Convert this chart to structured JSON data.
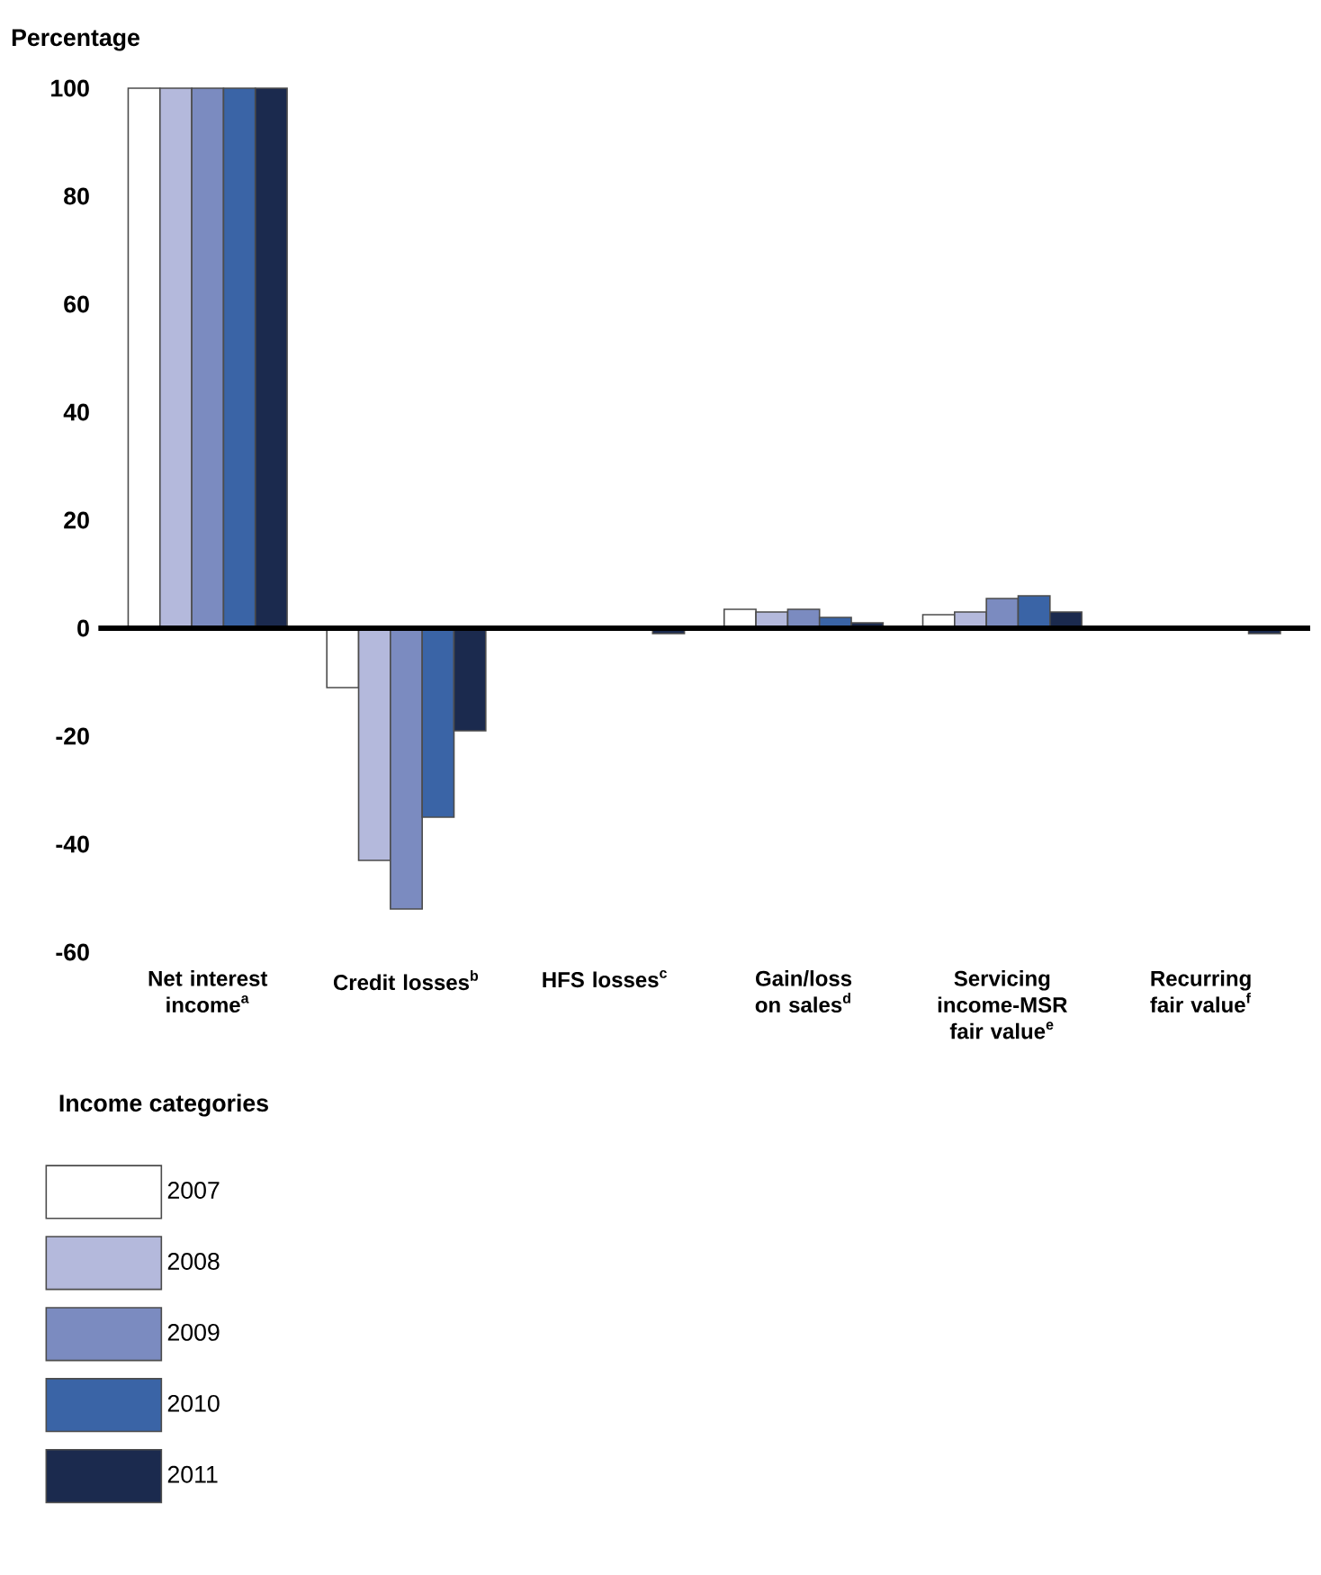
{
  "chart_data": {
    "type": "bar",
    "ylabel": "Percentage",
    "legend_title": "Income categories",
    "categories": [
      "Net interest income$^{a}$",
      "Credit losses$^{b}$",
      "HFS losses$^{c}$",
      "Gain/loss on sales$^{d}$",
      "Servicing income-MSR fair value$^{e}$",
      "Recurring fair value$^{f}$"
    ],
    "series": [
      {
        "name": "2007",
        "color": "#ffffff",
        "values": [
          100,
          -11,
          null,
          3.5,
          2.5,
          null
        ]
      },
      {
        "name": "2008",
        "color": "#b4b9dc",
        "values": [
          100,
          -43,
          null,
          3,
          3,
          null
        ]
      },
      {
        "name": "2009",
        "color": "#7b8bc0",
        "values": [
          100,
          -52,
          null,
          3.5,
          5.5,
          null
        ]
      },
      {
        "name": "2010",
        "color": "#3a64a6",
        "values": [
          100,
          -35,
          null,
          2,
          6,
          null
        ]
      },
      {
        "name": "2011",
        "color": "#1b2a4e",
        "values": [
          100,
          -19,
          -1,
          1,
          3,
          -1
        ]
      }
    ],
    "ylim": [
      -60,
      100
    ],
    "yticks": [
      -60,
      -40,
      -20,
      0,
      20,
      40,
      60,
      80,
      100
    ],
    "legend": "bottom left"
  }
}
